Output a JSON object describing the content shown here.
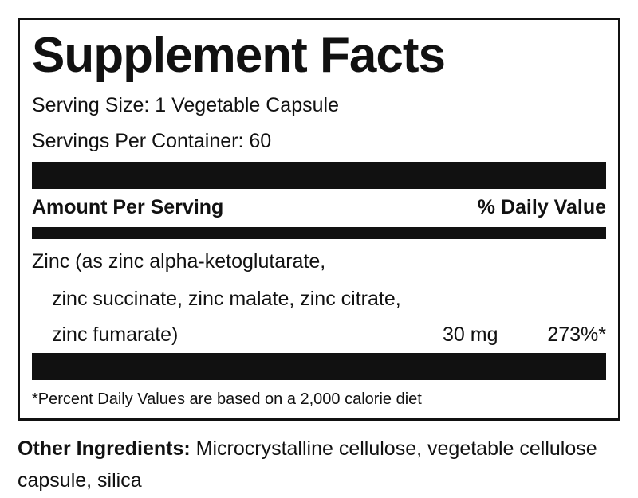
{
  "title": "Supplement Facts",
  "serving_size": "Serving Size: 1 Vegetable Capsule",
  "servings_per_container": "Servings Per Container: 60",
  "header": {
    "amount_per_serving": "Amount Per Serving",
    "daily_value": "% Daily Value"
  },
  "ingredients": [
    {
      "name_lines": [
        "Zinc (as zinc alpha-ketoglutarate,",
        "zinc succinate, zinc malate, zinc citrate,",
        "zinc fumarate)"
      ],
      "amount": "30 mg",
      "daily_value": "273%*"
    }
  ],
  "footnote": "*Percent Daily Values are based on a 2,000 calorie diet",
  "other_ingredients": {
    "label": "Other Ingredients:",
    "text": "Microcrystalline cellulose, vegetable cellulose capsule, silica"
  }
}
